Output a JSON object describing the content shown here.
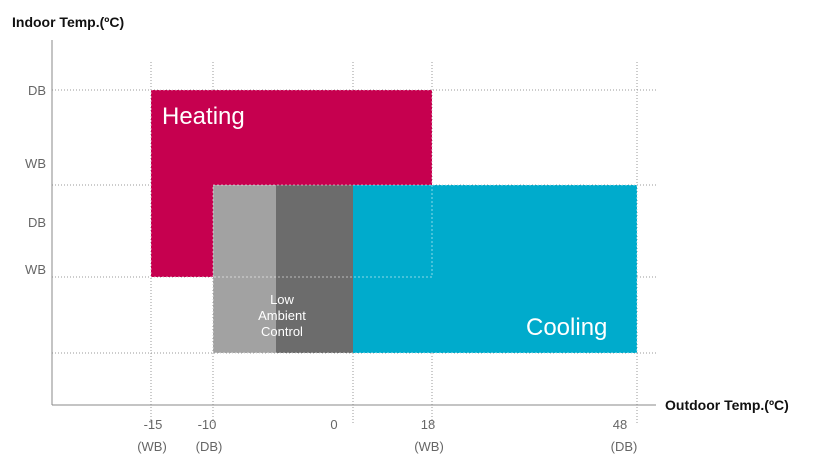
{
  "chart_data": {
    "type": "area",
    "title": "",
    "ylabel": "Indoor Temp.(ºC)",
    "xlabel": "Outdoor Temp.(ºC)",
    "y_levels": [
      "DB",
      "WB",
      "DB",
      "WB"
    ],
    "x_ticks": [
      {
        "value": "-15",
        "scale": "(WB)"
      },
      {
        "value": "-10",
        "scale": "(DB)"
      },
      {
        "value": "0",
        "scale": ""
      },
      {
        "value": "18",
        "scale": "(WB)"
      },
      {
        "value": "48",
        "scale": "(DB)"
      }
    ],
    "regions": [
      {
        "name": "Heating",
        "x_range": [
          "-15",
          "18"
        ],
        "color": "#c6004f"
      },
      {
        "name": "Cooling",
        "x_range": [
          "-10",
          "48"
        ],
        "color": "#00abcc"
      },
      {
        "name": "Low Ambient Control",
        "x_range": [
          "-10",
          "0"
        ],
        "colors": [
          "#a2a2a2",
          "#6c6c6c"
        ]
      }
    ]
  },
  "labels": {
    "heating": "Heating",
    "cooling": "Cooling",
    "lac_lines": [
      "Low",
      "Ambient",
      "Control"
    ]
  }
}
